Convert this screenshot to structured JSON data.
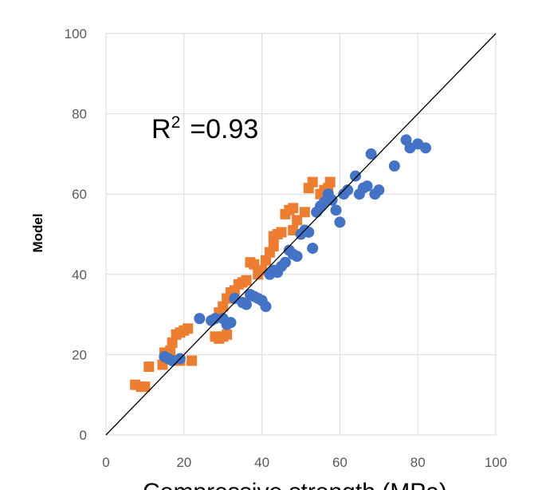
{
  "chart_data": {
    "type": "scatter",
    "title": "",
    "xlabel": "Compressive strength (MPa)",
    "ylabel": "Model",
    "xlim": [
      0,
      100
    ],
    "ylim": [
      0,
      100
    ],
    "x_ticks": [
      "0",
      "20",
      "40",
      "60",
      "80",
      "100"
    ],
    "y_ticks": [
      "0",
      "20",
      "40",
      "60",
      "80",
      "100"
    ],
    "grid": true,
    "legend": "none",
    "annotation": {
      "label": "R",
      "superscript": "2",
      "value": "=0.93"
    },
    "reference_line": {
      "from": [
        0,
        0
      ],
      "to": [
        100,
        100
      ],
      "color": "#000000"
    },
    "series": [
      {
        "color": "#ED7D31",
        "marker": "square",
        "points": [
          [
            7.5,
            12.5
          ],
          [
            9,
            12
          ],
          [
            10,
            12
          ],
          [
            11,
            17
          ],
          [
            14.5,
            17.5
          ],
          [
            15,
            20.5
          ],
          [
            16.5,
            21
          ],
          [
            17,
            23
          ],
          [
            18,
            25
          ],
          [
            19,
            25.5
          ],
          [
            20,
            26
          ],
          [
            21,
            26.5
          ],
          [
            19,
            18.5
          ],
          [
            22,
            18.5
          ],
          [
            28,
            24.5
          ],
          [
            29,
            24
          ],
          [
            30,
            24.5
          ],
          [
            31,
            25
          ],
          [
            29,
            30.5
          ],
          [
            30,
            32
          ],
          [
            31,
            34
          ],
          [
            32,
            35.5
          ],
          [
            33,
            36
          ],
          [
            34,
            37.5
          ],
          [
            35,
            38
          ],
          [
            36,
            38.5
          ],
          [
            37,
            43
          ],
          [
            38,
            42.5
          ],
          [
            39,
            40
          ],
          [
            40,
            41
          ],
          [
            41,
            43.5
          ],
          [
            42,
            45.5
          ],
          [
            43,
            47
          ],
          [
            43,
            49.5
          ],
          [
            44,
            50
          ],
          [
            45,
            50.5
          ],
          [
            46,
            55
          ],
          [
            47,
            56
          ],
          [
            48,
            56.5
          ],
          [
            49,
            53.5
          ],
          [
            48,
            51
          ],
          [
            51,
            55.5
          ],
          [
            52,
            61.5
          ],
          [
            53,
            63
          ],
          [
            55,
            60
          ],
          [
            56,
            61
          ],
          [
            57,
            61.5
          ],
          [
            57.5,
            63
          ]
        ]
      },
      {
        "color": "#4472C4",
        "marker": "circle",
        "points": [
          [
            15,
            19.5
          ],
          [
            16,
            19
          ],
          [
            17,
            18.5
          ],
          [
            19,
            19
          ],
          [
            24,
            29
          ],
          [
            27,
            28.5
          ],
          [
            28,
            29
          ],
          [
            30,
            29
          ],
          [
            31,
            27.5
          ],
          [
            32,
            28
          ],
          [
            33,
            34
          ],
          [
            35,
            33
          ],
          [
            36,
            32.5
          ],
          [
            37,
            35
          ],
          [
            38,
            34.5
          ],
          [
            39,
            34
          ],
          [
            40,
            33.5
          ],
          [
            41,
            32
          ],
          [
            42,
            40
          ],
          [
            43,
            41
          ],
          [
            44,
            40.5
          ],
          [
            45,
            42
          ],
          [
            46,
            43
          ],
          [
            47,
            46
          ],
          [
            48,
            45
          ],
          [
            49,
            44.5
          ],
          [
            50,
            50
          ],
          [
            51,
            51
          ],
          [
            52,
            50.5
          ],
          [
            53,
            46.5
          ],
          [
            54,
            55.5
          ],
          [
            55,
            57
          ],
          [
            56,
            58
          ],
          [
            57,
            60
          ],
          [
            58,
            58.5
          ],
          [
            59,
            56
          ],
          [
            60,
            53
          ],
          [
            61,
            60
          ],
          [
            62,
            61
          ],
          [
            64,
            64.5
          ],
          [
            65,
            60
          ],
          [
            66,
            61.5
          ],
          [
            67,
            62
          ],
          [
            68,
            70
          ],
          [
            69,
            60
          ],
          [
            70,
            61
          ],
          [
            74,
            67
          ],
          [
            77,
            73.5
          ],
          [
            78,
            71.5
          ],
          [
            80,
            72.5
          ],
          [
            82,
            71.5
          ]
        ]
      }
    ]
  }
}
